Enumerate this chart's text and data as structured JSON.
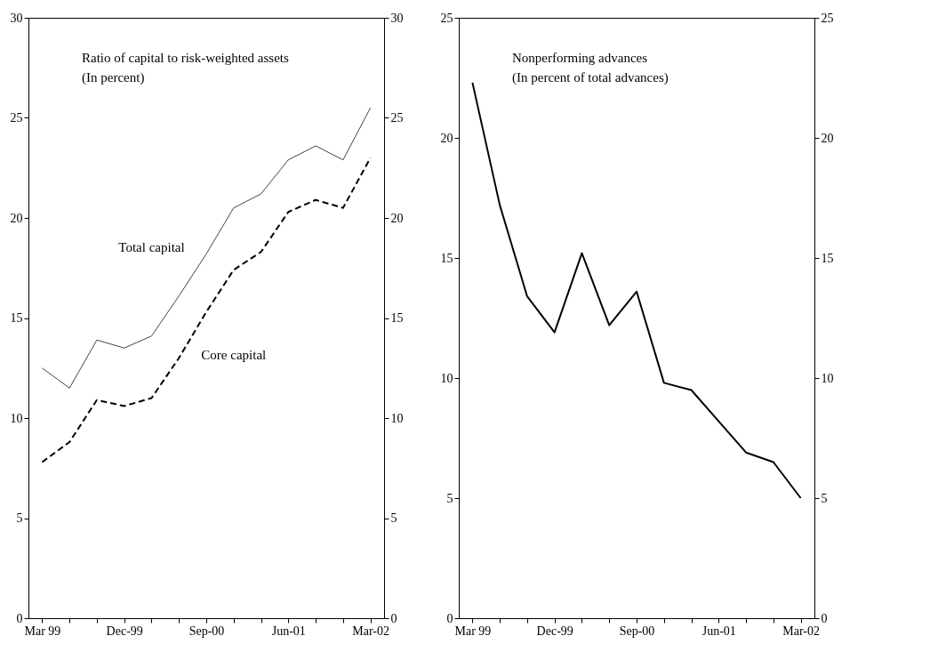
{
  "chart_data": [
    {
      "type": "line",
      "title": "Ratio of capital to risk-weighted assets",
      "subtitle": "(In percent)",
      "categories": [
        "Mar 99",
        null,
        null,
        "Dec-99",
        null,
        null,
        "Sep-00",
        null,
        null,
        "Jun-01",
        null,
        null,
        "Mar-02"
      ],
      "series": [
        {
          "name": "Total capital",
          "color": "#444444",
          "line_style": "solid",
          "values": [
            12.5,
            11.5,
            13.9,
            13.5,
            14.1,
            16.1,
            18.2,
            20.5,
            21.2,
            22.9,
            23.6,
            22.9,
            25.5
          ]
        },
        {
          "name": "Core capital",
          "color": "#000000",
          "line_style": "dashed",
          "values": [
            7.8,
            8.8,
            10.9,
            10.6,
            11.0,
            13.0,
            15.3,
            17.4,
            18.3,
            20.3,
            20.9,
            20.5,
            23.0
          ]
        }
      ],
      "ylim": [
        0,
        30
      ],
      "yticks": [
        0,
        5,
        10,
        15,
        20,
        25,
        30
      ],
      "y2lim": [
        0,
        30
      ],
      "y2ticks": [
        0,
        5,
        10,
        15,
        20,
        25,
        30
      ],
      "grid": false,
      "legend": false
    },
    {
      "type": "line",
      "title": "Nonperforming advances",
      "subtitle": "(In percent of total advances)",
      "categories": [
        "Mar 99",
        null,
        null,
        "Dec-99",
        null,
        null,
        "Sep-00",
        null,
        null,
        "Jun-01",
        null,
        null,
        "Mar-02"
      ],
      "series": [
        {
          "color": "#000000",
          "line_style": "solid",
          "values": [
            22.3,
            17.2,
            13.4,
            11.9,
            15.2,
            12.2,
            13.6,
            9.8,
            9.5,
            8.2,
            6.9,
            6.5,
            5.0
          ]
        }
      ],
      "ylim": [
        0,
        25
      ],
      "yticks": [
        0,
        5,
        10,
        15,
        20,
        25
      ],
      "y2lim": [
        0,
        25
      ],
      "y2ticks": [
        0,
        5,
        10,
        15,
        20,
        25
      ],
      "grid": false,
      "legend": false
    }
  ]
}
